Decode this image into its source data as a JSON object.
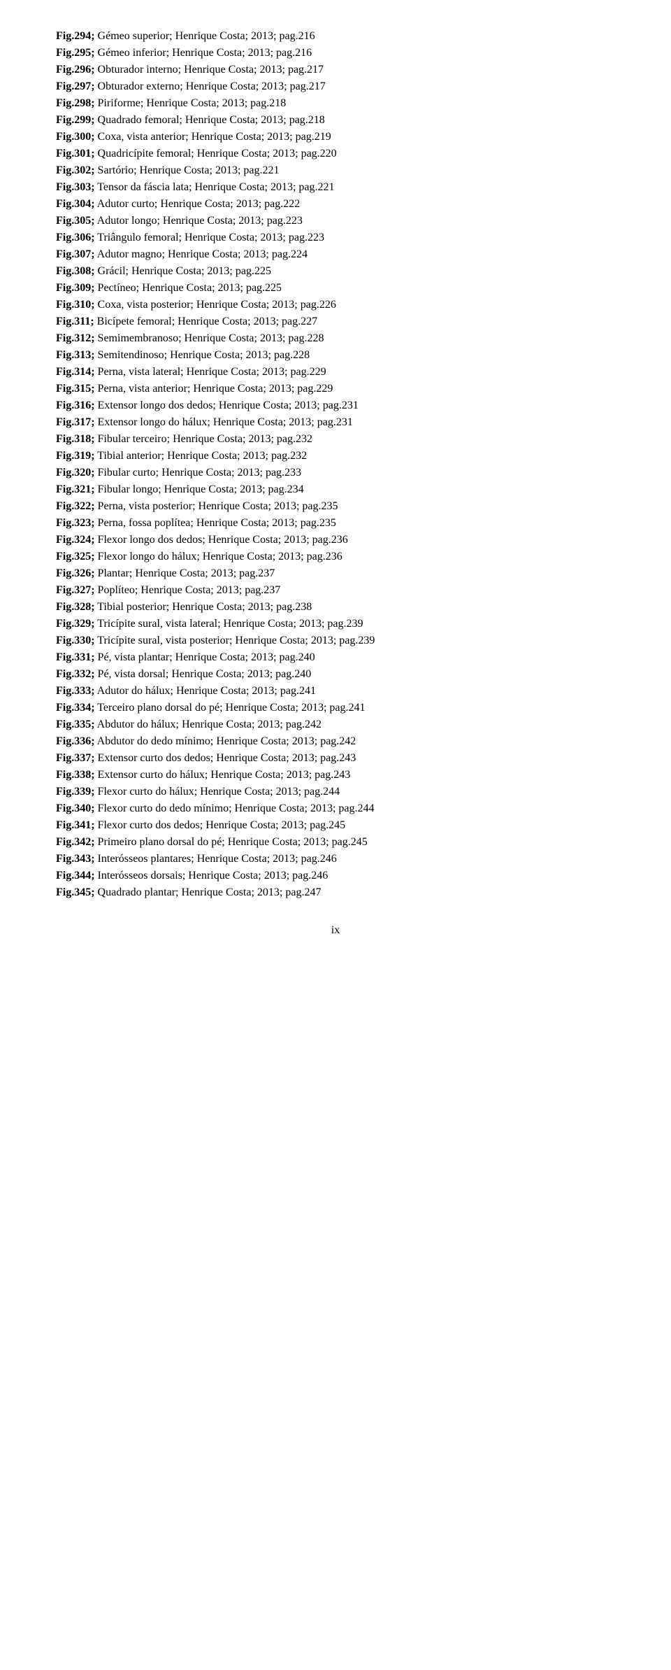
{
  "entries": [
    {
      "fig": "Fig.294;",
      "text": " Gémeo superior; Henrique Costa; 2013; pag.216"
    },
    {
      "fig": "Fig.295;",
      "text": " Gémeo inferior; Henrique Costa; 2013; pag.216"
    },
    {
      "fig": "Fig.296;",
      "text": " Obturador interno; Henrique Costa; 2013; pag.217"
    },
    {
      "fig": "Fig.297;",
      "text": " Obturador externo; Henrique Costa; 2013; pag.217"
    },
    {
      "fig": "Fig.298;",
      "text": " Piriforme; Henrique Costa; 2013; pag.218"
    },
    {
      "fig": "Fig.299;",
      "text": " Quadrado femoral; Henrique Costa; 2013; pag.218"
    },
    {
      "fig": "Fig.300;",
      "text": " Coxa, vista anterior; Henrique Costa; 2013; pag.219"
    },
    {
      "fig": "Fig.301;",
      "text": " Quadricípite femoral; Henrique Costa; 2013; pag.220"
    },
    {
      "fig": "Fig.302;",
      "text": " Sartório; Henrique Costa; 2013; pag.221"
    },
    {
      "fig": "Fig.303;",
      "text": " Tensor da fáscia lata; Henrique Costa; 2013; pag.221"
    },
    {
      "fig": "Fig.304;",
      "text": " Adutor curto; Henrique Costa; 2013; pag.222"
    },
    {
      "fig": "Fig.305;",
      "text": " Adutor longo; Henrique Costa; 2013; pag.223"
    },
    {
      "fig": "Fig.306;",
      "text": " Triângulo femoral; Henrique Costa; 2013; pag.223"
    },
    {
      "fig": "Fig.307;",
      "text": " Adutor magno; Henrique Costa; 2013; pag.224"
    },
    {
      "fig": "Fig.308;",
      "text": " Grácil; Henrique Costa; 2013; pag.225"
    },
    {
      "fig": "Fig.309;",
      "text": " Pectíneo; Henrique Costa; 2013; pag.225"
    },
    {
      "fig": "Fig.310;",
      "text": " Coxa, vista posterior; Henrique Costa; 2013; pag.226"
    },
    {
      "fig": "Fig.311;",
      "text": " Bicípete femoral; Henrique Costa; 2013; pag.227"
    },
    {
      "fig": "Fig.312;",
      "text": " Semimembranoso; Henrique Costa; 2013; pag.228"
    },
    {
      "fig": "Fig.313;",
      "text": " Semitendinoso; Henrique Costa; 2013; pag.228"
    },
    {
      "fig": "Fig.314;",
      "text": " Perna, vista lateral; Henrique Costa; 2013; pag.229"
    },
    {
      "fig": "Fig.315;",
      "text": " Perna, vista anterior; Henrique Costa; 2013; pag.229"
    },
    {
      "fig": "Fig.316;",
      "text": " Extensor longo dos dedos; Henrique Costa; 2013; pag.231"
    },
    {
      "fig": "Fig.317;",
      "text": " Extensor longo do hálux; Henrique Costa; 2013; pag.231"
    },
    {
      "fig": "Fig.318;",
      "text": " Fibular terceiro; Henrique Costa; 2013; pag.232"
    },
    {
      "fig": "Fig.319;",
      "text": " Tibial anterior; Henrique Costa; 2013; pag.232"
    },
    {
      "fig": "Fig.320;",
      "text": " Fibular curto; Henrique Costa; 2013; pag.233"
    },
    {
      "fig": "Fig.321;",
      "text": " Fibular longo; Henrique Costa; 2013; pag.234"
    },
    {
      "fig": "Fig.322;",
      "text": " Perna, vista posterior; Henrique Costa; 2013; pag.235"
    },
    {
      "fig": "Fig.323;",
      "text": " Perna, fossa poplítea; Henrique Costa; 2013; pag.235"
    },
    {
      "fig": "Fig.324;",
      "text": " Flexor longo dos dedos; Henrique Costa; 2013; pag.236"
    },
    {
      "fig": "Fig.325;",
      "text": " Flexor longo do hálux; Henrique Costa; 2013; pag.236"
    },
    {
      "fig": "Fig.326;",
      "text": " Plantar; Henrique Costa; 2013; pag.237"
    },
    {
      "fig": "Fig.327;",
      "text": " Poplíteo; Henrique Costa; 2013; pag.237"
    },
    {
      "fig": "Fig.328;",
      "text": " Tibial posterior; Henrique Costa; 2013; pag.238"
    },
    {
      "fig": "Fig.329;",
      "text": " Tricípite sural, vista lateral; Henrique Costa; 2013; pag.239"
    },
    {
      "fig": "Fig.330;",
      "text": " Tricípite sural, vista posterior; Henrique Costa; 2013; pag.239"
    },
    {
      "fig": "Fig.331;",
      "text": " Pé, vista plantar; Henrique Costa; 2013; pag.240"
    },
    {
      "fig": "Fig.332;",
      "text": " Pé, vista dorsal; Henrique Costa; 2013; pag.240"
    },
    {
      "fig": "Fig.333;",
      "text": " Adutor do hálux; Henrique Costa; 2013; pag.241"
    },
    {
      "fig": "Fig.334;",
      "text": " Terceiro plano dorsal do pé; Henrique Costa; 2013; pag.241"
    },
    {
      "fig": "Fig.335;",
      "text": " Abdutor do hálux; Henrique Costa; 2013; pag.242"
    },
    {
      "fig": "Fig.336;",
      "text": " Abdutor do dedo mínimo; Henrique Costa; 2013; pag.242"
    },
    {
      "fig": "Fig.337;",
      "text": " Extensor curto dos dedos; Henrique Costa; 2013; pag.243"
    },
    {
      "fig": "Fig.338;",
      "text": " Extensor curto do hálux; Henrique Costa; 2013; pag.243"
    },
    {
      "fig": "Fig.339;",
      "text": " Flexor curto do hálux; Henrique Costa; 2013; pag.244"
    },
    {
      "fig": "Fig.340;",
      "text": " Flexor curto do dedo mínimo; Henrique Costa; 2013; pag.244"
    },
    {
      "fig": "Fig.341;",
      "text": " Flexor curto dos dedos; Henrique Costa; 2013; pag.245"
    },
    {
      "fig": "Fig.342;",
      "text": " Primeiro plano dorsal do pé; Henrique Costa; 2013; pag.245"
    },
    {
      "fig": "Fig.343;",
      "text": " Interósseos plantares; Henrique Costa; 2013; pag.246"
    },
    {
      "fig": "Fig.344;",
      "text": " Interósseos dorsais; Henrique Costa; 2013; pag.246"
    },
    {
      "fig": "Fig.345;",
      "text": " Quadrado plantar; Henrique Costa; 2013; pag.247"
    }
  ],
  "pageNumber": "ix"
}
